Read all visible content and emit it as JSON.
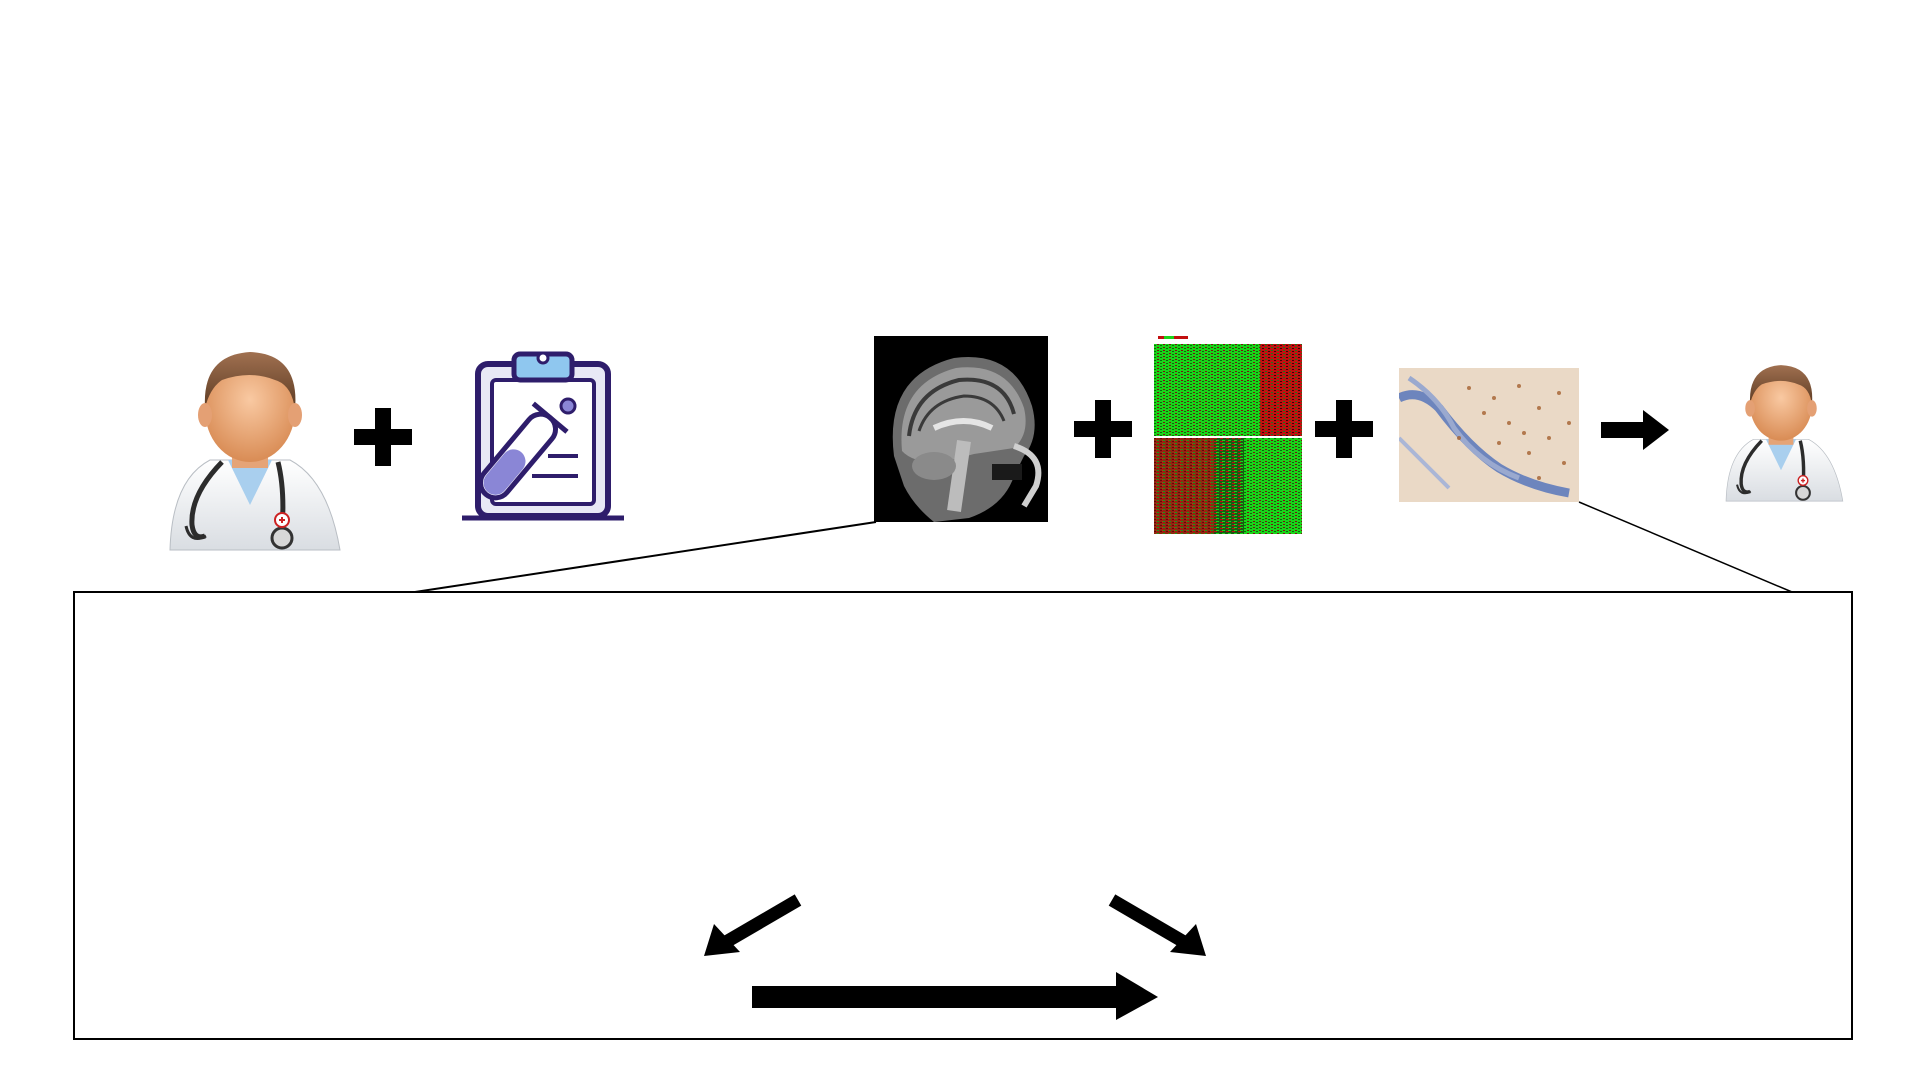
{
  "diagram": {
    "nodes": [
      {
        "id": "doctor",
        "icon": "doctor-icon"
      },
      {
        "id": "lab-report",
        "icon": "clipboard-test-tube-icon"
      },
      {
        "id": "brain-mri",
        "icon": "brain-mri-image"
      },
      {
        "id": "heatmap",
        "icon": "gene-expression-heatmap-image"
      },
      {
        "id": "histology",
        "icon": "histology-slide-image"
      },
      {
        "id": "doctor-small",
        "icon": "doctor-icon"
      }
    ],
    "operators": [
      "plus",
      "plus",
      "plus",
      "right-arrow"
    ],
    "detail_box": {
      "arrows": [
        "down-left-arrow",
        "down-right-arrow",
        "long-right-arrow"
      ]
    },
    "colors": {
      "line": "#000000",
      "clipboard_outline": "#2e1d6b",
      "clipboard_fill": "#e8e8f5",
      "clip_accent": "#8fc7ef",
      "tube_fill": "#8a86d6",
      "heatmap_green": "#19d419",
      "heatmap_red": "#c20f0f",
      "histology_bg": "#ead9c6",
      "histology_blue": "#6d85bd"
    }
  }
}
